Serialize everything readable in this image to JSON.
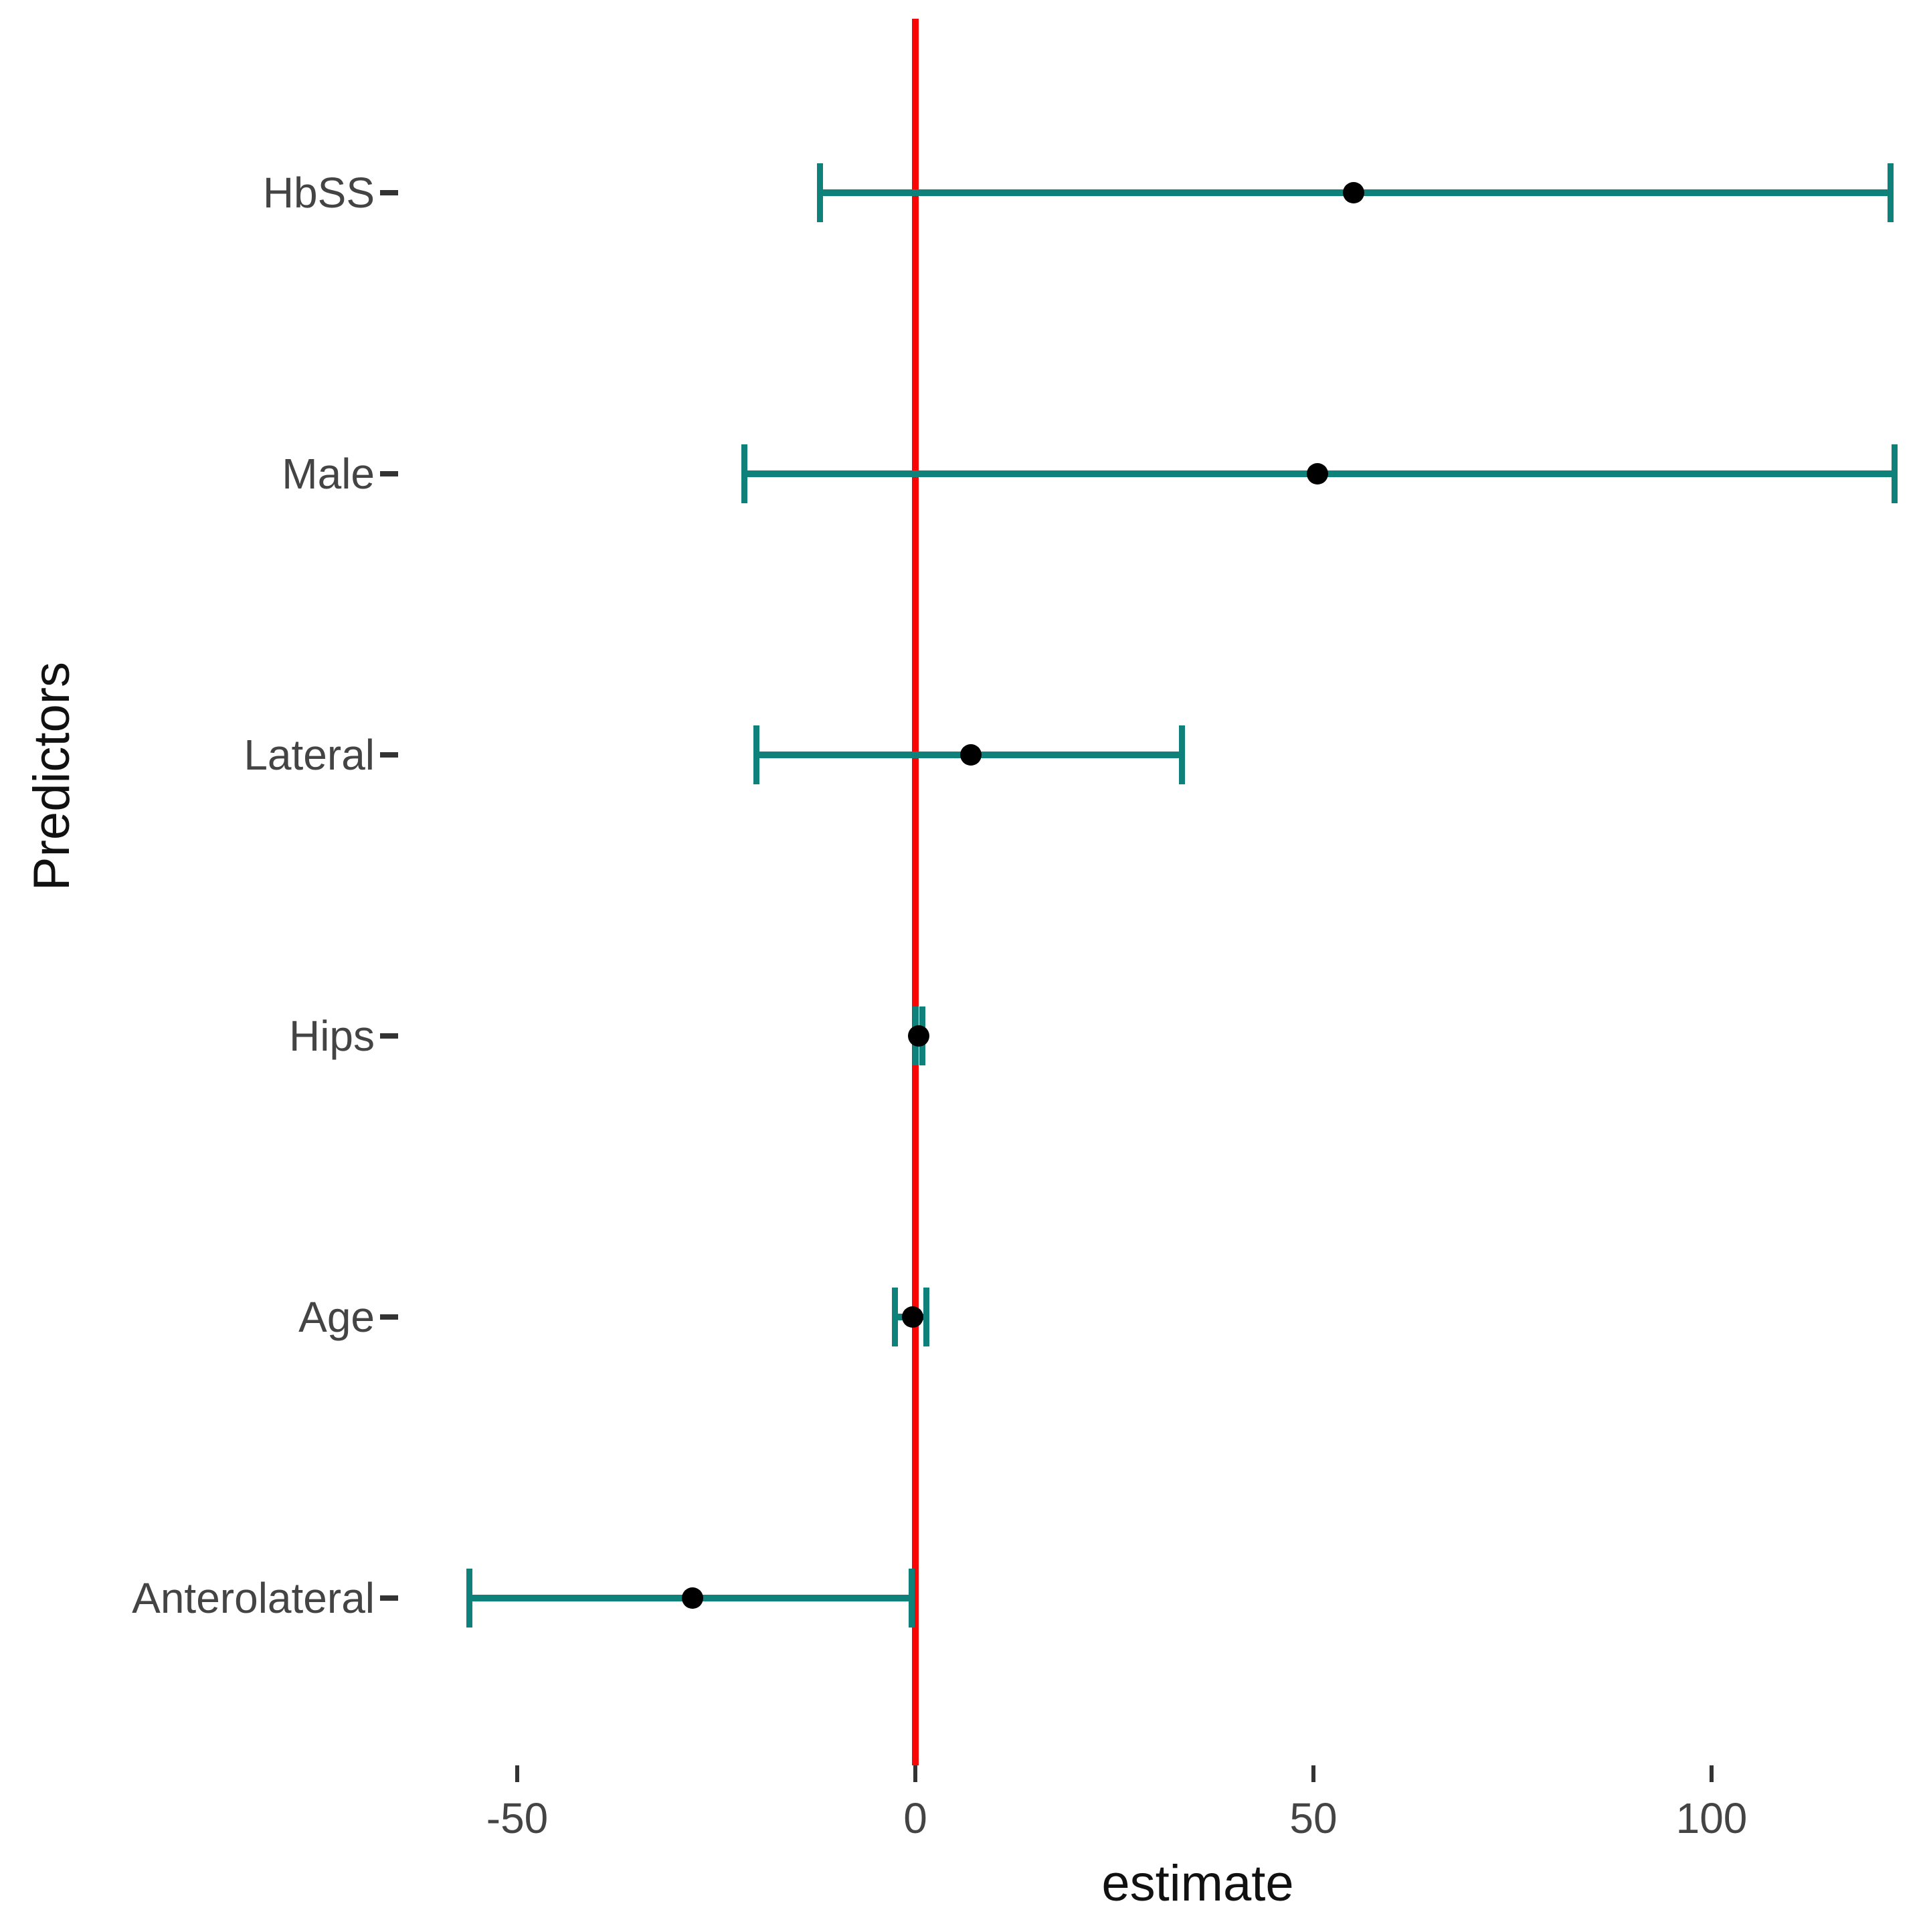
{
  "figure": {
    "background": "#ffffff",
    "description": "Forest plot of regression coefficient estimates with confidence intervals and a red zero reference line"
  },
  "chart_data": {
    "type": "scatter",
    "subtype": "forest-plot",
    "title": "",
    "xlabel": "estimate",
    "ylabel": "Predictors",
    "grid": "off",
    "legend": "none",
    "xlim": [
      -62,
      127
    ],
    "x_ticks": [
      {
        "label": "-50",
        "value": -50
      },
      {
        "label": "0",
        "value": 0
      },
      {
        "label": "50",
        "value": 50
      },
      {
        "label": "100",
        "value": 100
      }
    ],
    "reference_line_x": 0,
    "categories": [
      "HbSS",
      "Male",
      "Lateral",
      "Hips",
      "Age",
      "Anterolateral"
    ],
    "series": [
      {
        "label": "HbSS",
        "estimate": 55,
        "ci_low": -12,
        "ci_high": 122.5
      },
      {
        "label": "Male",
        "estimate": 50.5,
        "ci_low": -21.5,
        "ci_high": 123
      },
      {
        "label": "Lateral",
        "estimate": 7,
        "ci_low": -20,
        "ci_high": 33.5
      },
      {
        "label": "Hips",
        "estimate": 0.4,
        "ci_low": 0,
        "ci_high": 0.9
      },
      {
        "label": "Age",
        "estimate": -0.3,
        "ci_low": -2.6,
        "ci_high": 1.4
      },
      {
        "label": "Anterolateral",
        "estimate": -28,
        "ci_low": -56,
        "ci_high": -0.5
      }
    ],
    "colors": {
      "interval": "#0e817b",
      "point": "#000000",
      "reference_line": "#f80606",
      "tick_text": "#444444",
      "axis_title_text": "#111111",
      "tick_mark": "#333333"
    }
  }
}
